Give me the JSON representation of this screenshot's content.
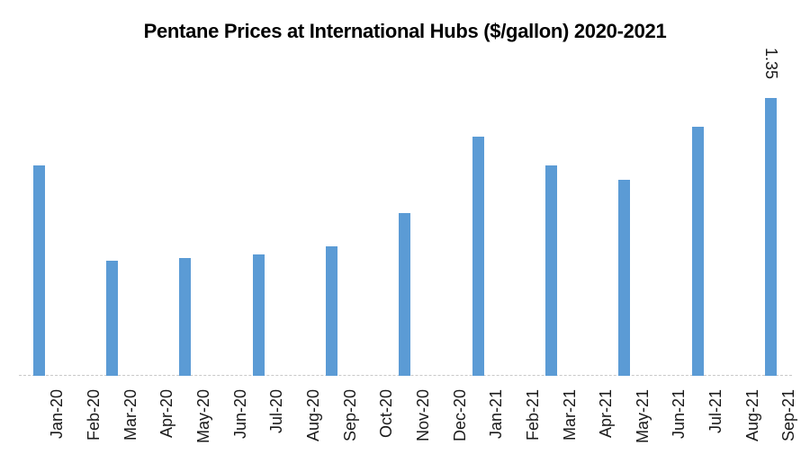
{
  "chart_data": {
    "type": "bar",
    "title": "Pentane Prices at International Hubs ($/gallon) 2020-2021",
    "categories": [
      "Jan-20",
      "Feb-20",
      "Mar-20",
      "Apr-20",
      "May-20",
      "Jun-20",
      "Jul-20",
      "Aug-20",
      "Sep-20",
      "Oct-20",
      "Nov-20",
      "Dec-20",
      "Jan-21",
      "Feb-21",
      "Mar-21",
      "Apr-21",
      "May-21",
      "Jun-21",
      "Jul-21",
      "Aug-21",
      "Sep-21"
    ],
    "values": [
      1.02,
      null,
      0.56,
      null,
      0.57,
      null,
      0.59,
      null,
      0.63,
      null,
      0.79,
      null,
      1.16,
      null,
      1.02,
      null,
      0.95,
      null,
      1.21,
      null,
      1.35
    ],
    "data_labels": [
      null,
      null,
      null,
      null,
      null,
      null,
      null,
      null,
      null,
      null,
      null,
      null,
      null,
      null,
      null,
      null,
      null,
      null,
      null,
      null,
      "1.35"
    ],
    "xlabel": "",
    "ylabel": "",
    "ylim": [
      0,
      1.45
    ],
    "grid": false,
    "legend": "none",
    "bar_color": "#5b9bd5",
    "axis_line_color": "#c9c9c9",
    "label_color": "#1a1a1a"
  }
}
